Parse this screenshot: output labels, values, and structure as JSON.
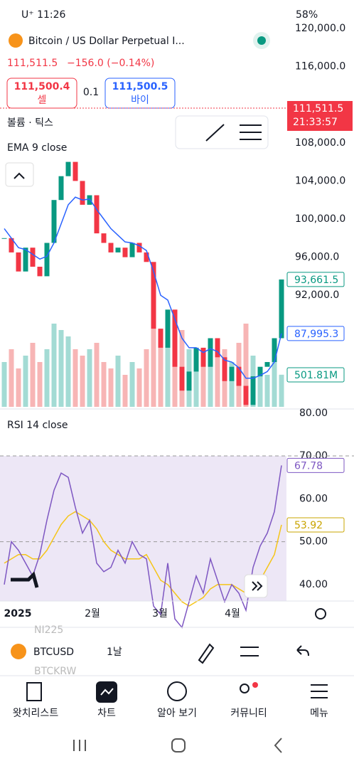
{
  "status_bar": {
    "time": "U⁺ 11:26",
    "battery": "58%"
  },
  "header": {
    "title": "Bitcoin / US Dollar Perpetual I...",
    "price": "111,511.5",
    "change": "−156.0 (−0.14%)"
  },
  "trade": {
    "sell_price": "111,500.4",
    "sell_label": "셀",
    "spread": "0.1",
    "buy_price": "111,500.5",
    "buy_label": "바이"
  },
  "chart": {
    "volume_label": "볼륨 · 틱스",
    "ema_label": "EMA 9 close",
    "rsi_label": "RSI 14 close",
    "price_ticks": [
      {
        "value": 120000,
        "label": "120,000.0"
      },
      {
        "value": 116000,
        "label": "116,000.0"
      },
      {
        "value": 108000,
        "label": "108,000.0"
      },
      {
        "value": 104000,
        "label": "104,000.0"
      },
      {
        "value": 100000,
        "label": "100,000.0"
      },
      {
        "value": 96000,
        "label": "96,000.0"
      },
      {
        "value": 92000,
        "label": "92,000.0"
      }
    ],
    "current_price_tag": {
      "price": "111,511.5",
      "countdown": "21:33:57"
    },
    "last_close_label": "93,661.5",
    "ema_last_label": "87,995.3",
    "volume_last_label": "501.81M",
    "clipped_tick": "80.00",
    "rsi_ticks": [
      {
        "value": 70,
        "label": "70.00"
      },
      {
        "value": 60,
        "label": "60.00"
      },
      {
        "value": 50,
        "label": "50.00"
      },
      {
        "value": 40,
        "label": "40.00"
      }
    ],
    "rsi_last_label": "67.78",
    "rsi_ma_last_label": "53.92",
    "date_labels": [
      "2025",
      "2월",
      "3월",
      "4월"
    ],
    "closes": [
      98000,
      96500,
      94500,
      97000,
      95000,
      94000,
      97500,
      102000,
      104500,
      106000,
      104000,
      101500,
      102500,
      98500,
      97500,
      96500,
      97000,
      96000,
      97500,
      96500,
      95500,
      88500,
      86500,
      90500,
      84500,
      82000,
      84000,
      86500,
      84500,
      87500,
      85500,
      83000,
      84500,
      82500,
      80500,
      83500,
      84500,
      85000,
      87500,
      93661.5
    ],
    "ema": [
      99000,
      98000,
      97000,
      96800,
      96300,
      95800,
      96100,
      97500,
      99500,
      101500,
      102300,
      102000,
      102100,
      101000,
      100000,
      99000,
      98300,
      97600,
      97500,
      97200,
      96700,
      94500,
      92000,
      91500,
      89500,
      87500,
      86500,
      86500,
      86000,
      86400,
      86100,
      85200,
      85000,
      84400,
      83300,
      83300,
      83600,
      84000,
      85000,
      87995.3
    ],
    "volumes": [
      700,
      900,
      600,
      800,
      1000,
      700,
      900,
      1300,
      1200,
      1100,
      900,
      800,
      900,
      1000,
      700,
      600,
      800,
      500,
      700,
      600,
      900,
      1300,
      1200,
      1000,
      1100,
      1200,
      900,
      700,
      800,
      700,
      800,
      900,
      700,
      1000,
      1300,
      800,
      600,
      500,
      700,
      501.81
    ],
    "rsi": [
      40,
      50,
      48,
      45,
      42,
      47,
      55,
      62,
      66,
      65,
      58,
      52,
      55,
      45,
      43,
      44,
      48,
      45,
      50,
      47,
      46,
      35,
      33,
      45,
      32,
      30,
      36,
      42,
      38,
      46,
      41,
      36,
      40,
      38,
      34,
      44,
      49,
      52,
      57,
      67.78
    ],
    "rsi_ma": [
      45,
      46,
      47,
      47,
      46,
      46,
      48,
      51,
      54,
      56,
      57,
      56,
      55,
      53,
      50,
      48,
      47,
      46,
      46,
      46,
      47,
      44,
      41,
      40,
      38,
      36,
      35,
      36,
      37,
      39,
      40,
      40,
      40,
      39,
      38,
      39,
      41,
      44,
      47,
      53.92
    ]
  },
  "symbol_bar": {
    "symbol": "BTCUSD",
    "interval": "1날",
    "behind_top": "NI225",
    "behind_bottom": "BTCKRW"
  },
  "nav": [
    "왓치리스트",
    "차트",
    "알아 보기",
    "커뮤니티",
    "메뉴"
  ]
}
